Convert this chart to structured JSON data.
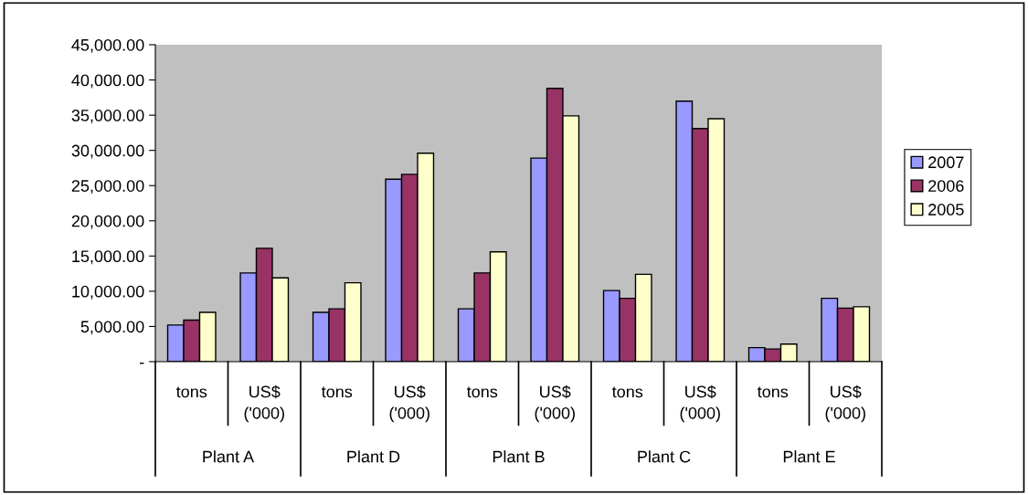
{
  "chart_data": {
    "type": "bar",
    "categories": [
      "tons",
      "US$\n('000)",
      "tons",
      "US$\n('000)",
      "tons",
      "US$\n('000)",
      "tons",
      "US$\n('000)",
      "tons",
      "US$\n('000)"
    ],
    "series": [
      {
        "name": "2007",
        "color": "#9999ff",
        "values": [
          5200,
          12600,
          7000,
          25900,
          7500,
          28900,
          10100,
          37000,
          2000,
          9000
        ]
      },
      {
        "name": "2006",
        "color": "#993366",
        "values": [
          5900,
          16100,
          7500,
          26600,
          12600,
          38800,
          9000,
          33100,
          1800,
          7600
        ]
      },
      {
        "name": "2005",
        "color": "#ffffcc",
        "values": [
          7000,
          11900,
          11200,
          29600,
          15600,
          34900,
          12400,
          34500,
          2500,
          7800
        ]
      }
    ],
    "annotations": [
      "Plant A",
      "Plant D",
      "Plant B",
      "Plant C",
      "Plant E"
    ],
    "ylim": [
      0,
      45000
    ],
    "yticks": [
      {
        "value": 0,
        "label": "-"
      },
      {
        "value": 5000,
        "label": "5,000.00"
      },
      {
        "value": 10000,
        "label": "10,000.00"
      },
      {
        "value": 15000,
        "label": "15,000.00"
      },
      {
        "value": 20000,
        "label": "20,000.00"
      },
      {
        "value": 25000,
        "label": "25,000.00"
      },
      {
        "value": 30000,
        "label": "30,000.00"
      },
      {
        "value": 35000,
        "label": "35,000.00"
      },
      {
        "value": 40000,
        "label": "40,000.00"
      },
      {
        "value": 45000,
        "label": "45,000.00"
      }
    ],
    "legend": "right"
  }
}
